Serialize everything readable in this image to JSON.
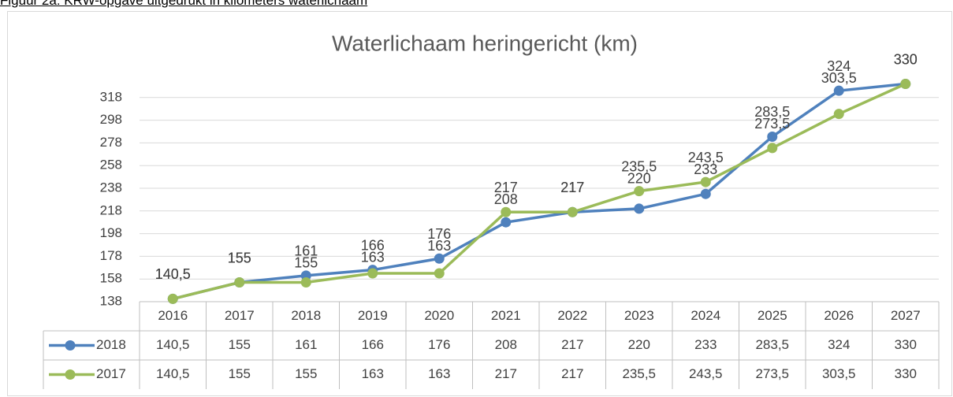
{
  "caption": "Figuur 2a: KRW-opgave uitgedrukt in kilometers waterlichaam",
  "chart_data": {
    "type": "line",
    "title": "Waterlichaam heringericht (km)",
    "categories": [
      "2016",
      "2017",
      "2018",
      "2019",
      "2020",
      "2021",
      "2022",
      "2023",
      "2024",
      "2025",
      "2026",
      "2027"
    ],
    "series": [
      {
        "name": "2018",
        "color": "#4f81bd",
        "values": [
          140.5,
          155,
          161,
          166,
          176,
          208,
          217,
          220,
          233,
          283.5,
          324,
          330
        ],
        "value_labels": [
          "140,5",
          "155",
          "161",
          "166",
          "176",
          "208",
          "217",
          "220",
          "233",
          "283,5",
          "324",
          "330"
        ]
      },
      {
        "name": "2017",
        "color": "#9bbb59",
        "values": [
          140.5,
          155,
          155,
          163,
          163,
          217,
          217,
          235.5,
          243.5,
          273.5,
          303.5,
          330
        ],
        "value_labels": [
          "140,5",
          "155",
          "155",
          "163",
          "163",
          "217",
          "217",
          "235,5",
          "243,5",
          "273,5",
          "303,5",
          "330"
        ]
      }
    ],
    "ylim": [
      138,
      338
    ],
    "yticks": [
      138,
      158,
      178,
      198,
      218,
      238,
      258,
      278,
      298,
      318
    ],
    "grid": true,
    "data_table": true
  }
}
